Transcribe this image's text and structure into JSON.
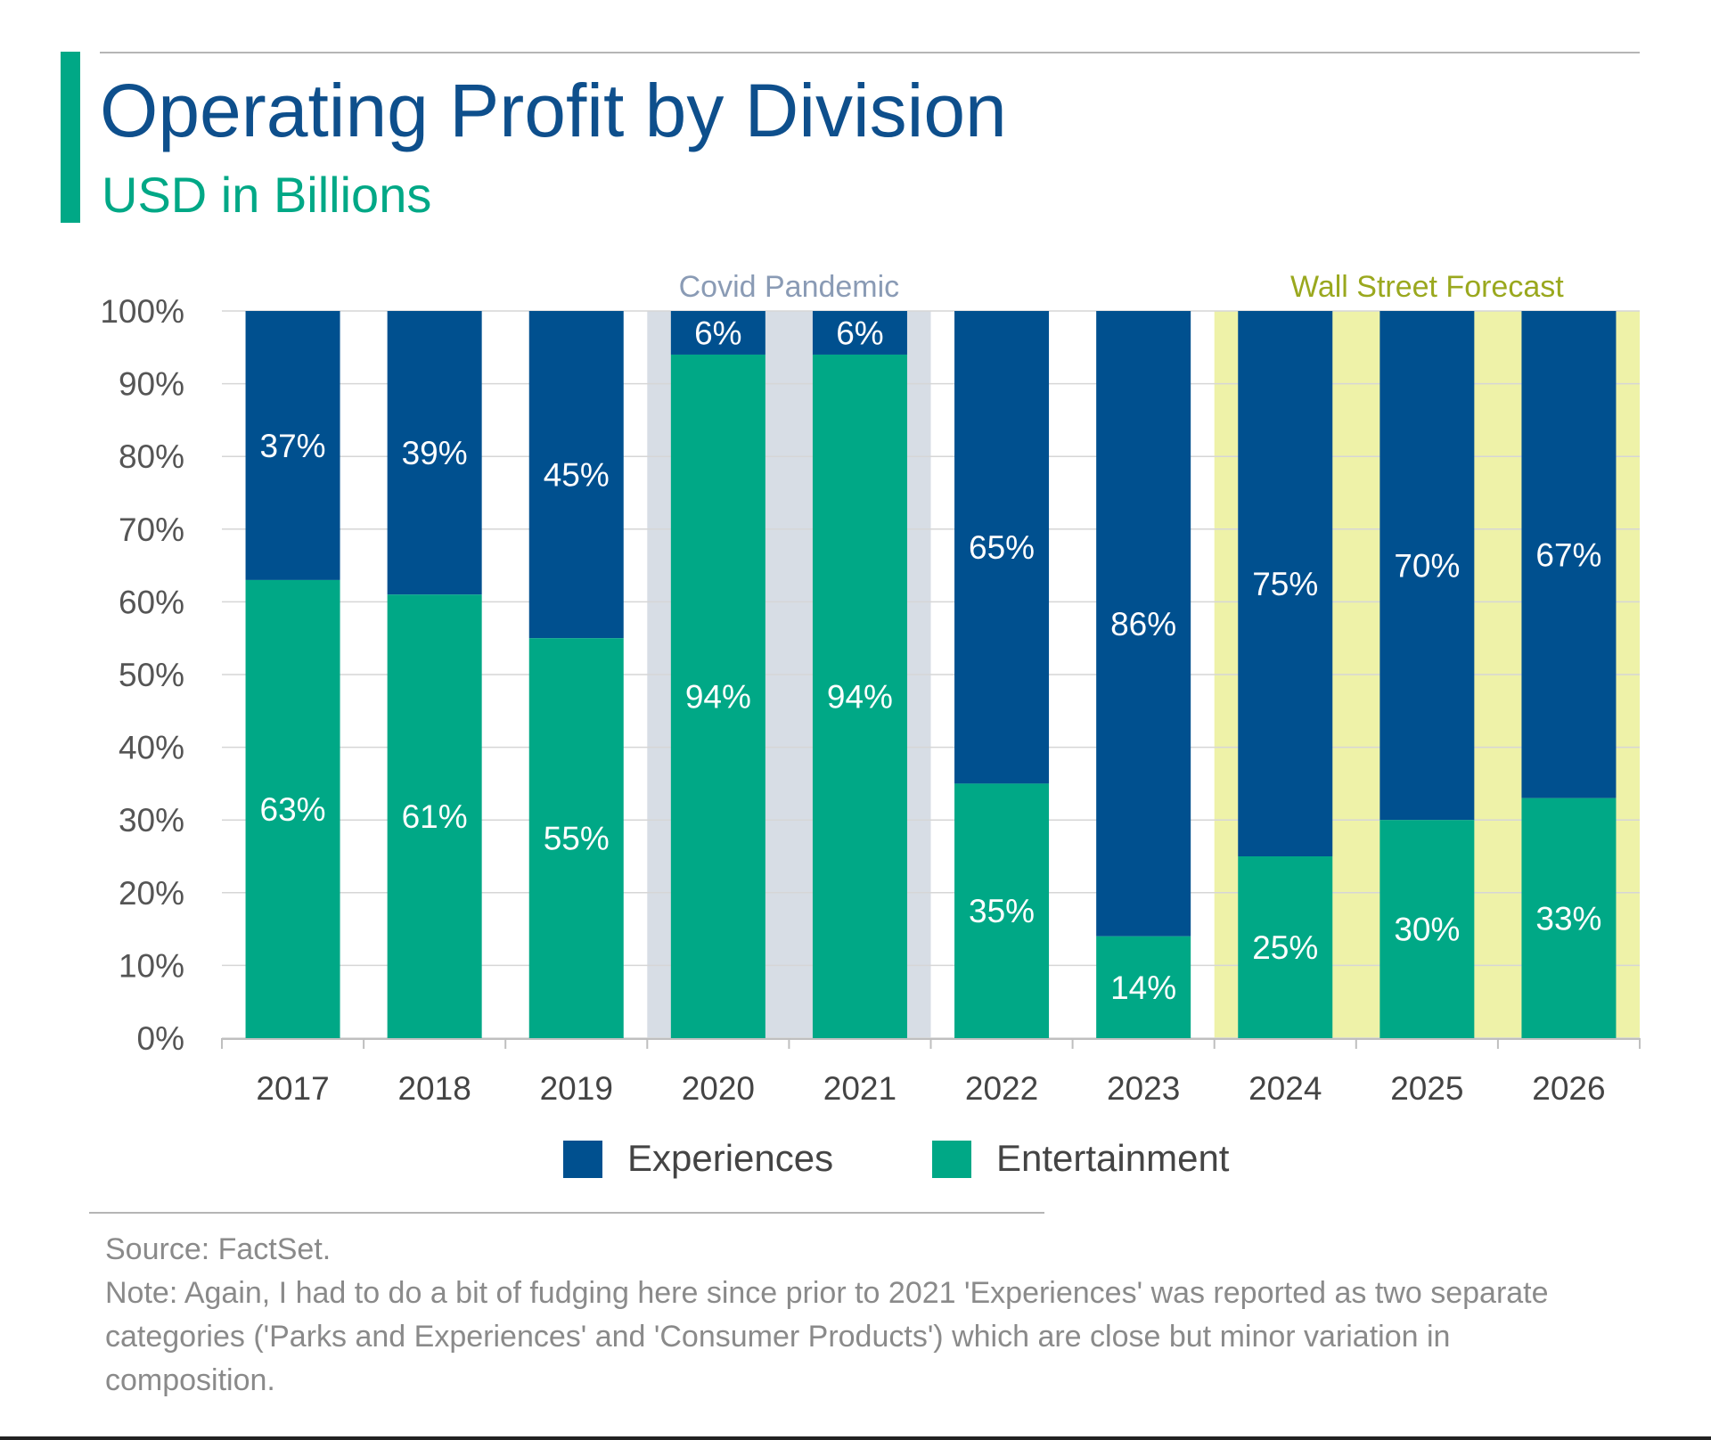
{
  "header": {
    "title": "Operating Profit by Division",
    "subtitle": "USD in Billions"
  },
  "footer": {
    "source": "Source: FactSet.",
    "note": "Note: Again, I had to do a bit of fudging here since prior to 2021 'Experiences' was reported as two separate categories ('Parks and Experiences' and 'Consumer Products') which are close but minor variation in composition."
  },
  "colors": {
    "experiences": "#00508f",
    "entertainment": "#00a886",
    "covid_shade": "#d7dde5",
    "forecast_shade": "#eef2a8",
    "covid_label": "#8a9bb5",
    "forecast_label": "#9aa81e",
    "grid": "#d6d6d6",
    "axis_text": "#555555"
  },
  "chart_data": {
    "type": "bar",
    "stacked": true,
    "categories": [
      "2017",
      "2018",
      "2019",
      "2020",
      "2021",
      "2022",
      "2023",
      "2024",
      "2025",
      "2026"
    ],
    "series": [
      {
        "name": "Entertainment",
        "values": [
          63,
          61,
          55,
          94,
          94,
          35,
          14,
          25,
          30,
          33
        ],
        "labels": [
          "63%",
          "61%",
          "55%",
          "94%",
          "94%",
          "35%",
          "14%",
          "25%",
          "30%",
          "33%"
        ]
      },
      {
        "name": "Experiences",
        "values": [
          37,
          39,
          45,
          6,
          6,
          65,
          86,
          75,
          70,
          67
        ],
        "labels": [
          "37%",
          "39%",
          "45%",
          "6%",
          "6%",
          "65%",
          "86%",
          "75%",
          "70%",
          "67%"
        ]
      }
    ],
    "ylim": [
      0,
      100
    ],
    "yticks": [
      "0%",
      "10%",
      "20%",
      "30%",
      "40%",
      "50%",
      "60%",
      "70%",
      "80%",
      "90%",
      "100%"
    ],
    "grid": true,
    "legend": [
      "Experiences",
      "Entertainment"
    ],
    "legend_position": "bottom",
    "annotations": [
      {
        "text": "Covid Pandemic",
        "from": "2020",
        "to": "2021",
        "kind": "covid"
      },
      {
        "text": "Wall Street Forecast",
        "from": "2024",
        "to": "2026",
        "kind": "forecast"
      }
    ]
  }
}
